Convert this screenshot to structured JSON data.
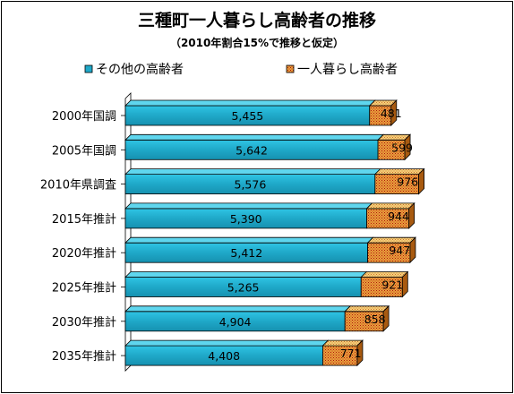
{
  "chart_data": {
    "type": "bar",
    "orientation": "horizontal",
    "stacked": true,
    "title": "三種町一人暮らし高齢者の推移",
    "subtitle": "（2010年割合15%で推移と仮定）",
    "categories": [
      "2000年国調",
      "2005年国調",
      "2010年県調査",
      "2015年推計",
      "2020年推計",
      "2025年推計",
      "2030年推計",
      "2035年推計"
    ],
    "series": [
      {
        "name": "その他の高齢者",
        "color": "#1FA8C8",
        "values": [
          5455,
          5642,
          5576,
          5390,
          5412,
          5265,
          4904,
          4408
        ]
      },
      {
        "name": "一人暮らし高齢者",
        "color": "#E8A23A",
        "values": [
          481,
          599,
          976,
          944,
          947,
          921,
          858,
          771
        ]
      }
    ],
    "value_labels": [
      [
        "5,455",
        "5,642",
        "5,576",
        "5,390",
        "5,412",
        "5,265",
        "4,904",
        "4,408"
      ],
      [
        "481",
        "599",
        "976",
        "944",
        "947",
        "921",
        "858",
        "771"
      ]
    ],
    "xlim": [
      0,
      7000
    ],
    "legend": "top-left",
    "grid": false
  }
}
